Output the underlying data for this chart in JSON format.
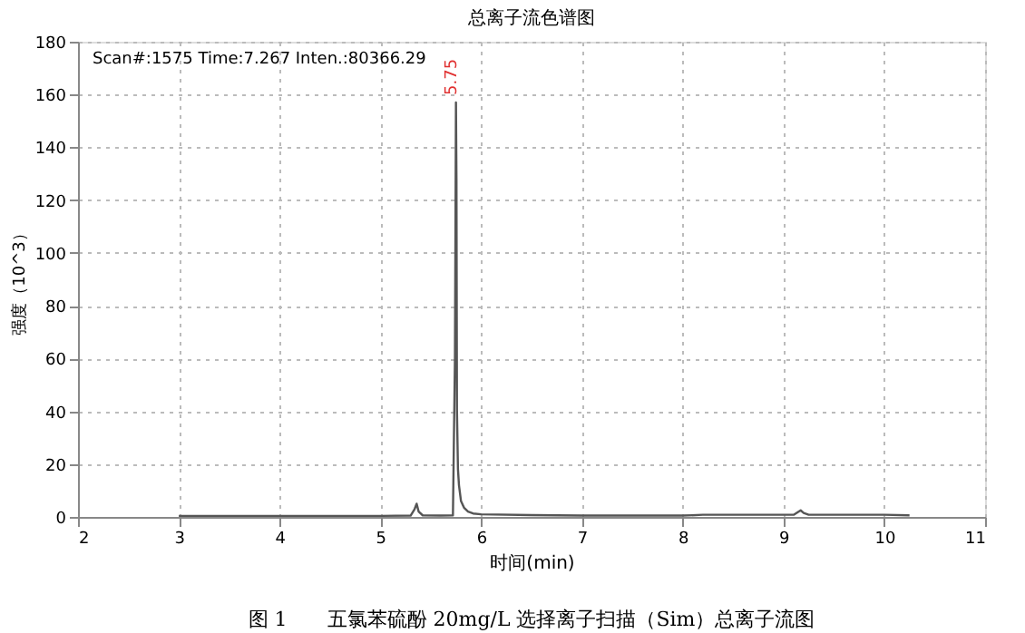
{
  "chart_data": {
    "type": "line",
    "title": "总离子流色谱图",
    "xlabel": "时间(min)",
    "ylabel": "强度（10^3）",
    "x": [
      3.0,
      4.0,
      5.0,
      5.3,
      5.34,
      5.36,
      5.38,
      5.42,
      5.6,
      5.72,
      5.74,
      5.75,
      5.755,
      5.76,
      5.77,
      5.78,
      5.8,
      5.83,
      5.87,
      5.92,
      6.0,
      6.5,
      7.0,
      8.0,
      8.2,
      9.1,
      9.17,
      9.2,
      9.25,
      10.0,
      10.25
    ],
    "series": [
      {
        "color": "#555555",
        "values": [
          0.4,
          0.4,
          0.4,
          0.5,
          3,
          5,
          2,
          0.6,
          0.5,
          0.6,
          60,
          157,
          128,
          40,
          18,
          12,
          6,
          3.5,
          2,
          1.3,
          1,
          0.7,
          0.5,
          0.5,
          0.8,
          0.8,
          2.5,
          1.5,
          0.8,
          0.8,
          0.6
        ]
      }
    ],
    "xlim": [
      2,
      11
    ],
    "xticks": [
      2,
      3,
      4,
      5,
      6,
      7,
      8,
      9,
      10,
      11
    ],
    "ylim": [
      0,
      180
    ],
    "yticks": [
      0,
      20,
      40,
      60,
      80,
      100,
      120,
      140,
      160,
      180
    ],
    "grid": true,
    "line_style": "solid",
    "marker": "none",
    "annotations": [
      {
        "text": "5.75",
        "x": 5.75,
        "y": 157
      },
      "Scan#:1575  Time:7.267  Inten.:80366.29",
      "图 1　　五氯苯硫酚 20mg/L 选择离子扫描（Sim）总离子流图"
    ]
  }
}
